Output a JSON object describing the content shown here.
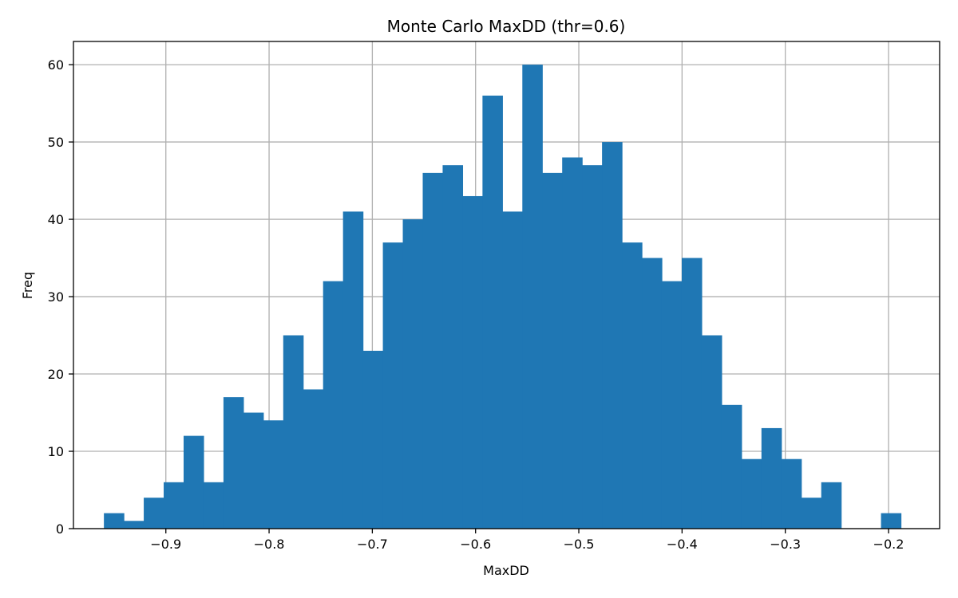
{
  "chart_data": {
    "type": "bar",
    "title": "Monte Carlo MaxDD (thr=0.6)",
    "xlabel": "MaxDD",
    "ylabel": "Freq",
    "bin_start": -0.96,
    "bin_width": 0.0193,
    "counts": [
      2,
      1,
      4,
      6,
      12,
      6,
      17,
      15,
      14,
      25,
      18,
      32,
      41,
      23,
      37,
      40,
      46,
      47,
      43,
      56,
      41,
      60,
      46,
      48,
      47,
      50,
      37,
      35,
      32,
      35,
      25,
      16,
      9,
      13,
      9,
      4,
      6,
      0,
      0,
      2
    ],
    "xlim": [
      -0.9895,
      -0.1505
    ],
    "ylim": [
      0,
      63
    ],
    "xticks": [
      -0.9,
      -0.8,
      -0.7,
      -0.6,
      -0.5,
      -0.4,
      -0.3,
      -0.2
    ],
    "xtick_labels": [
      "−0.9",
      "−0.8",
      "−0.7",
      "−0.6",
      "−0.5",
      "−0.4",
      "−0.3",
      "−0.2"
    ],
    "yticks": [
      0,
      10,
      20,
      30,
      40,
      50,
      60
    ],
    "ytick_labels": [
      "0",
      "10",
      "20",
      "30",
      "40",
      "50",
      "60"
    ],
    "grid": true,
    "bar_color": "#1f77b4",
    "grid_color": "#b0b0b0"
  }
}
